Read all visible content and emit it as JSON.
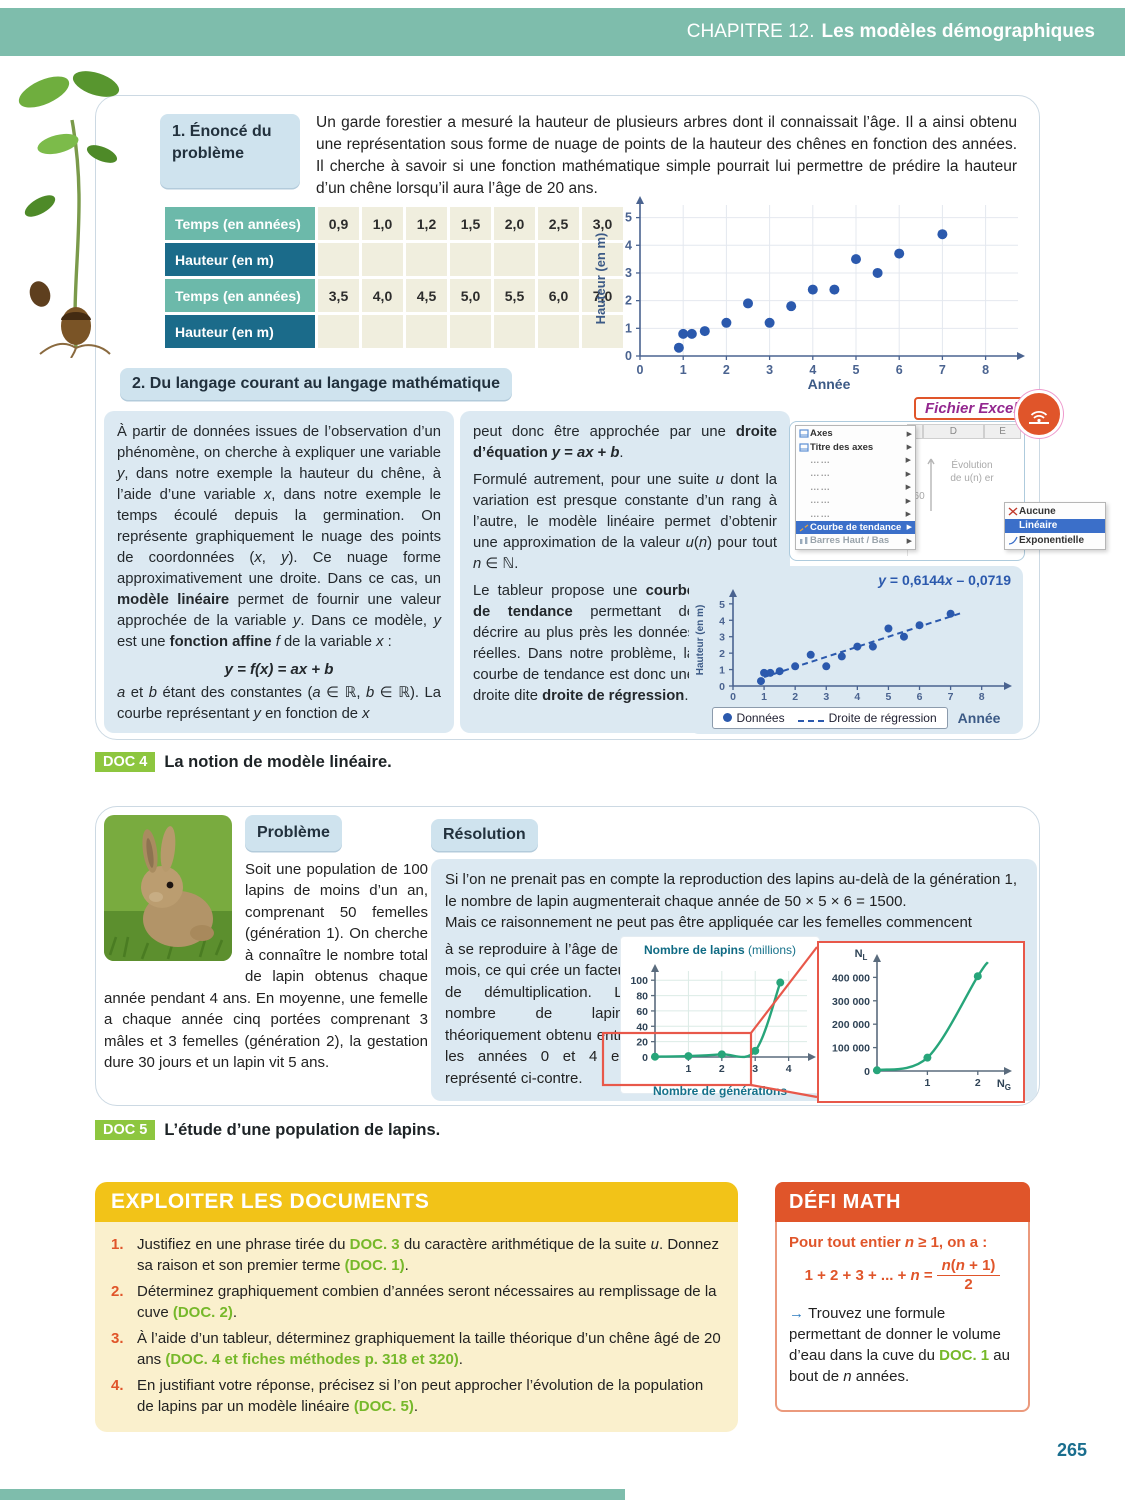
{
  "page": {
    "chapter_prefix": "CHAPITRE 12.",
    "chapter_title": "Les modèles démographiques",
    "page_number": "265"
  },
  "section1": {
    "label": "1. Énoncé du problème",
    "intro": "Un garde forestier a mesuré la hauteur de plusieurs arbres dont il connaissait l’âge. Il a ainsi obtenu une représentation sous forme de nuage de points de la hauteur des chênes en fonction des années. Il cherche à savoir si une fonction mathématique simple pourrait lui permettre de prédire la hauteur d’un chêne lorsqu’il aura l’âge de 20 ans."
  },
  "table": {
    "rows": [
      {
        "label": "Temps (en années)",
        "style": "teal",
        "values": [
          "0,9",
          "1,0",
          "1,2",
          "1,5",
          "2,0",
          "2,5",
          "3,0"
        ]
      },
      {
        "label": "Hauteur (en m)",
        "style": "dark",
        "values": [
          "",
          "",
          "",
          "",
          "",
          "",
          ""
        ]
      },
      {
        "label": "Temps (en années)",
        "style": "teal",
        "values": [
          "3,5",
          "4,0",
          "4,5",
          "5,0",
          "5,5",
          "6,0",
          "7,0"
        ]
      },
      {
        "label": "Hauteur (en m)",
        "style": "dark",
        "values": [
          "",
          "",
          "",
          "",
          "",
          "",
          ""
        ]
      }
    ]
  },
  "section2": {
    "label": "2. Du langage courant au langage mathématique",
    "col1": [
      {
        "t": "À partir de données issues de l’observation d’un phénomène, on cherche à expliquer une variable "
      },
      {
        "t": "y",
        "c": "i"
      },
      {
        "t": ", dans notre exemple la hauteur du chêne, à l’aide d’une variable "
      },
      {
        "t": "x",
        "c": "i"
      },
      {
        "t": ", dans notre exemple le temps écoulé depuis la germination. On représente graphiquement le nuage des points de coordonnées ("
      },
      {
        "t": "x",
        "c": "i"
      },
      {
        "t": ", "
      },
      {
        "t": "y",
        "c": "i"
      },
      {
        "t": "). Ce nuage forme approximativement une droite. Dans ce cas, un "
      },
      {
        "t": "modèle linéaire",
        "c": "b"
      },
      {
        "t": " permet de fournir une valeur approchée de la variable "
      },
      {
        "t": "y",
        "c": "i"
      },
      {
        "t": ". Dans ce modèle, "
      },
      {
        "t": "y",
        "c": "i"
      },
      {
        "t": " est une "
      },
      {
        "t": "fonction affine",
        "c": "b"
      },
      {
        "t": " f",
        "c": "i"
      },
      {
        "t": " de la variable "
      },
      {
        "t": "x",
        "c": "i"
      },
      {
        "t": " :"
      }
    ],
    "formula": [
      {
        "t": "y = f(x) = ax + b",
        "c": "bi"
      }
    ],
    "col1_end": [
      {
        "t": "a",
        "c": "i"
      },
      {
        "t": " et "
      },
      {
        "t": "b",
        "c": "i"
      },
      {
        "t": " étant des constantes ("
      },
      {
        "t": "a",
        "c": "i"
      },
      {
        "t": " ∈ ℝ, "
      },
      {
        "t": "b",
        "c": "i"
      },
      {
        "t": " ∈ ℝ). La courbe représentant "
      },
      {
        "t": "y",
        "c": "i"
      },
      {
        "t": " en fonction de "
      },
      {
        "t": "x",
        "c": "i"
      }
    ],
    "col2_p1": [
      {
        "t": "peut donc être approchée par une "
      },
      {
        "t": "droite d’équation ",
        "c": "b"
      },
      {
        "t": "y",
        "c": "bi"
      },
      {
        "t": " = ",
        "c": "b"
      },
      {
        "t": "ax",
        "c": "bi"
      },
      {
        "t": " + ",
        "c": "b"
      },
      {
        "t": "b",
        "c": "bi"
      },
      {
        "t": "."
      }
    ],
    "col2_p2": [
      {
        "t": "Formulé autrement, pour une suite "
      },
      {
        "t": "u",
        "c": "i"
      },
      {
        "t": " dont la variation est presque constante d’un rang à l’autre, le modèle linéaire permet d’obtenir une approximation de la valeur "
      },
      {
        "t": "u",
        "c": "i"
      },
      {
        "t": "("
      },
      {
        "t": "n",
        "c": "i"
      },
      {
        "t": ") pour tout "
      },
      {
        "t": "n",
        "c": "i"
      },
      {
        "t": " ∈ ℕ."
      }
    ],
    "col2_p3": [
      {
        "t": "Le tableur propose une "
      },
      {
        "t": "courbe de tendance",
        "c": "b"
      },
      {
        "t": " permettant de décrire au plus près les données réelles. Dans notre problème, la courbe de tendance est donc une droite dite "
      },
      {
        "t": "droite de régression",
        "c": "b"
      },
      {
        "t": "."
      }
    ]
  },
  "excel": {
    "badge": "Fichier Excel",
    "menu": [
      {
        "label": "Axes",
        "icon": "chart"
      },
      {
        "label": "Titre des axes",
        "icon": "chart"
      },
      {
        "label": "……",
        "dots": true
      },
      {
        "label": "……",
        "dots": true
      },
      {
        "label": "……",
        "dots": true
      },
      {
        "label": "……",
        "dots": true
      },
      {
        "label": "……",
        "dots": true
      },
      {
        "label": "Courbe de tendance",
        "icon": "trend",
        "highlight": true
      },
      {
        "label": "Barres Haut / Bas",
        "icon": "bars",
        "disabled": true
      }
    ],
    "submenu": [
      {
        "label": "Aucune",
        "icon": "none"
      },
      {
        "label": "Linéaire",
        "icon": "lin",
        "highlight": true
      },
      {
        "label": "Exponentielle",
        "icon": "exp"
      }
    ],
    "sheet": {
      "cols": [
        "D",
        "E"
      ],
      "caption_line1": "Évolution",
      "caption_line2": "de u(n) er",
      "tick": "160"
    }
  },
  "doc4": {
    "badge": "DOC 4",
    "text": "La notion de modèle linéaire."
  },
  "doc5": {
    "badge": "DOC 5",
    "text": "L’étude d’une population de lapins."
  },
  "rabbit": {
    "probleme_label": "Problème",
    "probleme_text": "Soit une population de 100 lapins de moins d’un an, comprenant 50 femelles (génération 1). On cherche à connaître le nombre total de lapin obtenus chaque année pendant 4 ans. En moyenne, une femelle a chaque année cinq portées comprenant 3 mâles et 3 femelles (génération 2), la gestation dure 30 jours et un lapin vit 5 ans.",
    "resolution_label": "Résolution",
    "resolution_p1": "Si l’on ne prenait pas en compte la reproduction des lapins au-delà de la génération 1, le nombre de lapin augmenterait chaque année de 50 × 5 × 6 = 1500.",
    "resolution_p2": "Mais ce raisonnement ne peut pas être appliquée car les femelles commencent",
    "resolution_p3": "à se reproduire à l’âge de 6 mois, ce qui crée un facteur de démulti­plication. Le nombre de lapins théoriquement obtenu entre les années 0 et 4 est représenté ci-contre."
  },
  "exploiter": {
    "title": "EXPLOITER LES DOCUMENTS",
    "items": [
      {
        "num": "1.",
        "text": [
          {
            "t": "Justifiez en une phrase tirée du "
          },
          {
            "t": "DOC. 3",
            "c": "g"
          },
          {
            "t": " du caractère arithmétique de la suite "
          },
          {
            "t": "u",
            "c": "i"
          },
          {
            "t": ". Donnez sa raison et son premier terme "
          },
          {
            "t": "(DOC. 1)",
            "c": "g"
          },
          {
            "t": "."
          }
        ]
      },
      {
        "num": "2.",
        "text": [
          {
            "t": "Déterminez graphiquement combien d’années seront nécessaires au remplissage de la cuve "
          },
          {
            "t": "(DOC. 2)",
            "c": "g"
          },
          {
            "t": "."
          }
        ]
      },
      {
        "num": "3.",
        "text": [
          {
            "t": "À l’aide d’un tableur, déterminez graphiquement la taille théorique d’un chêne âgé de 20 ans "
          },
          {
            "t": "(DOC. 4 et fiches méthodes p. 318 et 320)",
            "c": "g"
          },
          {
            "t": "."
          }
        ]
      },
      {
        "num": "4.",
        "text": [
          {
            "t": "En justifiant votre réponse, précisez si l’on peut approcher l’évolution de la population de lapins par un modèle linéaire "
          },
          {
            "t": "(DOC. 5)",
            "c": "g"
          },
          {
            "t": "."
          }
        ]
      }
    ]
  },
  "defi": {
    "title": "DÉFI MATH",
    "intro": [
      {
        "t": "Pour tout entier ",
        "c": "ob"
      },
      {
        "t": "n",
        "c": "obi"
      },
      {
        "t": " ≥ 1, on a :",
        "c": "ob"
      }
    ],
    "formula_left": [
      {
        "t": "1 + 2 + 3 + ... + ",
        "c": "ob"
      },
      {
        "t": "n",
        "c": "obi"
      },
      {
        "t": " = ",
        "c": "ob"
      }
    ],
    "frac_num": [
      {
        "t": "n",
        "c": "obi"
      },
      {
        "t": "(",
        "c": "ob"
      },
      {
        "t": "n",
        "c": "obi"
      },
      {
        "t": " + 1)",
        "c": "ob"
      }
    ],
    "frac_den": "2",
    "body": [
      {
        "t": "→ ",
        "c": "bl"
      },
      {
        "t": "Trouvez une formule permettant de donner le volume d’eau dans la cuve du "
      },
      {
        "t": "DOC. 1",
        "c": "g"
      },
      {
        "t": " au bout de "
      },
      {
        "t": "n",
        "c": "i"
      },
      {
        "t": " années."
      }
    ]
  },
  "chart_data": [
    {
      "id": "chart-oak-scatter",
      "type": "scatter",
      "xlabel": "Année",
      "ylabel": "Hauteur (en m)",
      "xlim": [
        0,
        8.75
      ],
      "ylim": [
        0,
        5.6
      ],
      "xticks": [
        0,
        1,
        2,
        3,
        4,
        5,
        6,
        7,
        8
      ],
      "yticks": [
        0,
        1,
        2,
        3,
        4,
        5
      ],
      "grid": true,
      "x": [
        0.9,
        1.0,
        1.2,
        1.5,
        2.0,
        2.5,
        3.0,
        3.5,
        4.0,
        4.5,
        5.0,
        5.5,
        6.0,
        7.0
      ],
      "y": [
        0.3,
        0.8,
        0.8,
        0.9,
        1.2,
        1.9,
        1.2,
        1.8,
        2.4,
        2.4,
        3.5,
        3.0,
        3.7,
        4.4
      ],
      "point_color": "#2b59ad"
    },
    {
      "id": "chart-oak-regression",
      "type": "scatter",
      "xlabel": "Année",
      "ylabel": "Hauteur (en m)",
      "xlim": [
        0,
        8.75
      ],
      "ylim": [
        0,
        5.6
      ],
      "xticks": [
        0,
        1,
        2,
        3,
        4,
        5,
        6,
        7,
        8
      ],
      "yticks": [
        0,
        1,
        2,
        3,
        4,
        5
      ],
      "grid": false,
      "x": [
        0.9,
        1.0,
        1.2,
        1.5,
        2.0,
        2.5,
        3.0,
        3.5,
        4.0,
        4.5,
        5.0,
        5.5,
        6.0,
        7.0
      ],
      "y": [
        0.3,
        0.8,
        0.8,
        0.9,
        1.2,
        1.9,
        1.2,
        1.8,
        2.4,
        2.4,
        3.5,
        3.0,
        3.7,
        4.4
      ],
      "point_color": "#2b59ad",
      "regression": {
        "a": 0.6144,
        "b": -0.0719,
        "x0": 1.0,
        "x1": 7.35
      },
      "equation": [
        {
          "t": "y",
          "c": "bi"
        },
        {
          "t": " = 0,6144",
          "c": "b"
        },
        {
          "t": "x",
          "c": "bi"
        },
        {
          "t": " – 0,0719",
          "c": "b"
        }
      ],
      "legend": {
        "points": "Données",
        "line": "Droite de régression"
      }
    },
    {
      "id": "chart-rabbits-gen",
      "type": "curve",
      "title_main": "Nombre de lapins",
      "title_sub": " (millions)",
      "xlabel": "Nombre de générations",
      "xlim": [
        0,
        4.55
      ],
      "ylim": [
        0,
        112
      ],
      "xticks": [
        1,
        2,
        3,
        4
      ],
      "yticks": [
        0,
        20,
        40,
        60,
        80,
        100
      ],
      "grid": true,
      "points": [
        [
          0,
          0.4
        ],
        [
          1,
          1.2
        ],
        [
          2,
          3.5
        ],
        [
          3,
          8
        ],
        [
          3.75,
          97
        ]
      ],
      "color": "#27a57a"
    },
    {
      "id": "chart-rabbits-zoom",
      "type": "curve",
      "ylabel_axis": "N_L",
      "xlabel_axis": "N_G",
      "xlim": [
        0,
        2.5
      ],
      "ylim": [
        0,
        470000
      ],
      "xticks": [
        1,
        2
      ],
      "yticks": [
        0,
        100000,
        200000,
        300000,
        400000
      ],
      "ytick_labels": [
        "0",
        "100 000",
        "200 000",
        "300 000",
        "400 000"
      ],
      "grid": false,
      "points": [
        [
          0,
          3000
        ],
        [
          1,
          57000
        ],
        [
          2,
          405000
        ]
      ],
      "extend": [
        2.2,
        465000
      ],
      "color": "#27a57a"
    }
  ]
}
